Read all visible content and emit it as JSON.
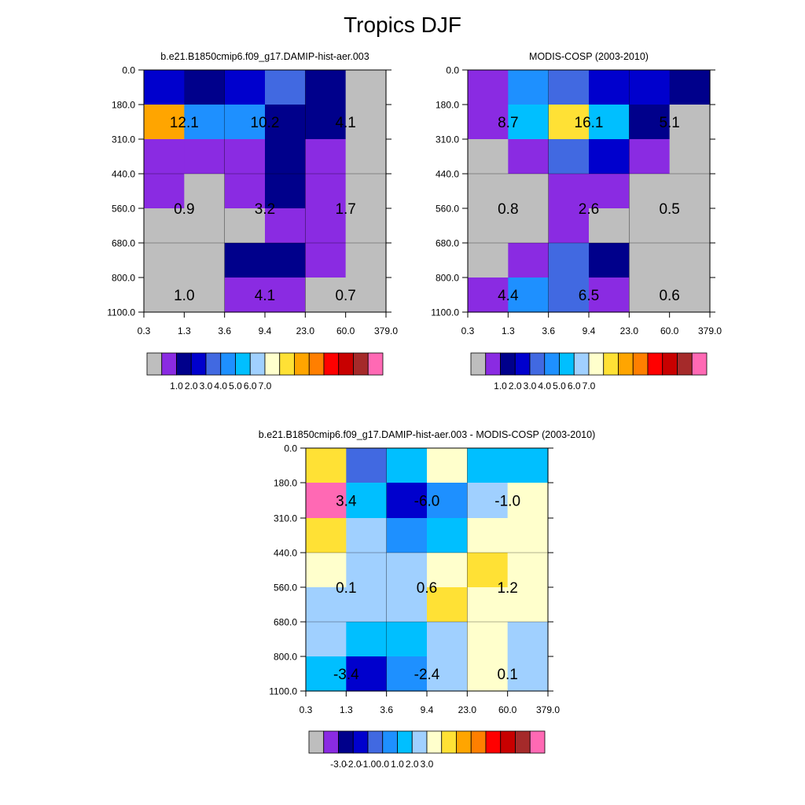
{
  "figure": {
    "title": "Tropics DJF"
  },
  "x_tick_labels": [
    "0.3",
    "1.3",
    "3.6",
    "9.4",
    "23.0",
    "60.0",
    "379.0"
  ],
  "y_tick_labels": [
    "0.0",
    "180.0",
    "310.0",
    "440.0",
    "560.0",
    "680.0",
    "800.0",
    "1100.0"
  ],
  "palette_abs": [
    "#bebebe",
    "#8a2be2",
    "#00008b",
    "#0000cd",
    "#4169e1",
    "#1e90ff",
    "#00bfff",
    "#a0d0ff",
    "#ffffcc",
    "#ffe135",
    "#ffa500",
    "#ff7f00",
    "#ff0000",
    "#c80000",
    "#a52a2a",
    "#ff69b4"
  ],
  "palette_diff": [
    "#bebebe",
    "#8a2be2",
    "#00008b",
    "#0000cd",
    "#4169e1",
    "#1e90ff",
    "#00bfff",
    "#a0d0ff",
    "#ffffcc",
    "#ffe135",
    "#ffa500",
    "#ff7f00",
    "#ff0000",
    "#c80000",
    "#a52a2a",
    "#ff69b4"
  ],
  "chart_data": [
    {
      "type": "heatmap",
      "title": "b.e21.B1850cmip6.f09_g17.DAMIP-hist-aer.003",
      "x_categories": [
        "0.3",
        "1.3",
        "3.6",
        "9.4",
        "23.0",
        "60.0",
        "379.0"
      ],
      "y_categories": [
        "0.0",
        "180.0",
        "310.0",
        "440.0",
        "560.0",
        "680.0",
        "800.0",
        "1100.0"
      ],
      "cell_colors": [
        [
          "#0000cd",
          "#00008b",
          "#0000cd",
          "#4169e1",
          "#00008b",
          "#bebebe"
        ],
        [
          "#ffa500",
          "#1e90ff",
          "#1e90ff",
          "#00008b",
          "#00008b",
          "#bebebe"
        ],
        [
          "#8a2be2",
          "#8a2be2",
          "#8a2be2",
          "#00008b",
          "#8a2be2",
          "#bebebe"
        ],
        [
          "#8a2be2",
          "#bebebe",
          "#8a2be2",
          "#00008b",
          "#8a2be2",
          "#bebebe"
        ],
        [
          "#bebebe",
          "#bebebe",
          "#bebebe",
          "#8a2be2",
          "#8a2be2",
          "#bebebe"
        ],
        [
          "#bebebe",
          "#bebebe",
          "#00008b",
          "#00008b",
          "#8a2be2",
          "#bebebe"
        ],
        [
          "#bebebe",
          "#bebebe",
          "#8a2be2",
          "#8a2be2",
          "#bebebe",
          "#bebebe"
        ]
      ],
      "box_values": [
        [
          "12.1",
          "10.2",
          "4.1"
        ],
        [
          "0.9",
          "3.2",
          "1.7"
        ],
        [
          "1.0",
          "4.1",
          "0.7"
        ]
      ],
      "colorbar_labels": [
        "1.0",
        "2.0",
        "3.0",
        "4.0",
        "5.0",
        "6.0",
        "7.0"
      ]
    },
    {
      "type": "heatmap",
      "title": "MODIS-COSP (2003-2010)",
      "x_categories": [
        "0.3",
        "1.3",
        "3.6",
        "9.4",
        "23.0",
        "60.0",
        "379.0"
      ],
      "y_categories": [
        "0.0",
        "180.0",
        "310.0",
        "440.0",
        "560.0",
        "680.0",
        "800.0",
        "1100.0"
      ],
      "cell_colors": [
        [
          "#8a2be2",
          "#1e90ff",
          "#4169e1",
          "#0000cd",
          "#0000cd",
          "#00008b"
        ],
        [
          "#8a2be2",
          "#00bfff",
          "#ffe135",
          "#00bfff",
          "#00008b",
          "#bebebe"
        ],
        [
          "#bebebe",
          "#8a2be2",
          "#4169e1",
          "#0000cd",
          "#8a2be2",
          "#bebebe"
        ],
        [
          "#bebebe",
          "#bebebe",
          "#8a2be2",
          "#8a2be2",
          "#bebebe",
          "#bebebe"
        ],
        [
          "#bebebe",
          "#bebebe",
          "#8a2be2",
          "#bebebe",
          "#bebebe",
          "#bebebe"
        ],
        [
          "#bebebe",
          "#8a2be2",
          "#4169e1",
          "#00008b",
          "#bebebe",
          "#bebebe"
        ],
        [
          "#8a2be2",
          "#1e90ff",
          "#4169e1",
          "#8a2be2",
          "#bebebe",
          "#bebebe"
        ]
      ],
      "box_values": [
        [
          "8.7",
          "16.1",
          "5.1"
        ],
        [
          "0.8",
          "2.6",
          "0.5"
        ],
        [
          "4.4",
          "6.5",
          "0.6"
        ]
      ],
      "colorbar_labels": [
        "1.0",
        "2.0",
        "3.0",
        "4.0",
        "5.0",
        "6.0",
        "7.0"
      ]
    },
    {
      "type": "heatmap",
      "title": "b.e21.B1850cmip6.f09_g17.DAMIP-hist-aer.003 - MODIS-COSP (2003-2010)",
      "x_categories": [
        "0.3",
        "1.3",
        "3.6",
        "9.4",
        "23.0",
        "60.0",
        "379.0"
      ],
      "y_categories": [
        "0.0",
        "180.0",
        "310.0",
        "440.0",
        "560.0",
        "680.0",
        "800.0",
        "1100.0"
      ],
      "cell_colors": [
        [
          "#ffe135",
          "#4169e1",
          "#00bfff",
          "#ffffcc",
          "#00bfff",
          "#00bfff"
        ],
        [
          "#ff69b4",
          "#00bfff",
          "#0000cd",
          "#1e90ff",
          "#a0d0ff",
          "#ffffcc"
        ],
        [
          "#ffe135",
          "#a0d0ff",
          "#1e90ff",
          "#00bfff",
          "#ffffcc",
          "#ffffcc"
        ],
        [
          "#ffffcc",
          "#a0d0ff",
          "#a0d0ff",
          "#ffffcc",
          "#ffe135",
          "#ffffcc"
        ],
        [
          "#a0d0ff",
          "#a0d0ff",
          "#a0d0ff",
          "#ffe135",
          "#ffffcc",
          "#ffffcc"
        ],
        [
          "#a0d0ff",
          "#00bfff",
          "#00bfff",
          "#a0d0ff",
          "#ffffcc",
          "#a0d0ff"
        ],
        [
          "#00bfff",
          "#0000cd",
          "#1e90ff",
          "#a0d0ff",
          "#ffffcc",
          "#a0d0ff"
        ]
      ],
      "box_values": [
        [
          "3.4",
          "-6.0",
          "-1.0"
        ],
        [
          "0.1",
          "0.6",
          "1.2"
        ],
        [
          "-3.4",
          "-2.4",
          "0.1"
        ]
      ],
      "colorbar_labels": [
        "-3.0",
        "-2.0",
        "-1.0",
        "0.0",
        "1.0",
        "2.0",
        "3.0"
      ]
    }
  ]
}
